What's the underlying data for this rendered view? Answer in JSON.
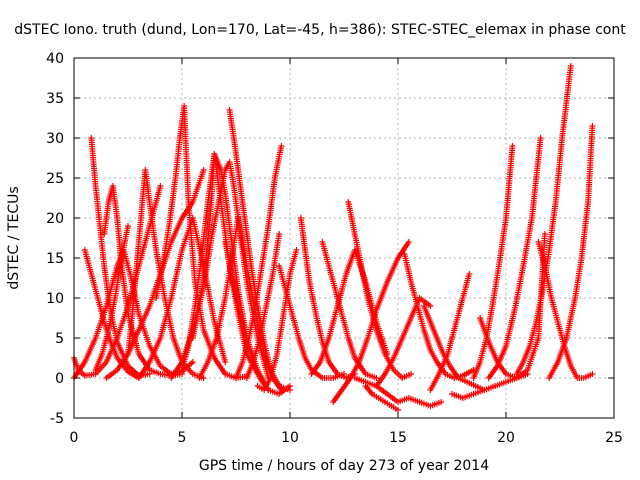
{
  "chart_data": {
    "type": "scatter",
    "title": "dSTEC Iono. truth (dund, Lon=170, Lat=-45, h=386): STEC-STEC_elemax in phase cont",
    "xlabel": "GPS time / hours of day 273 of year 2014",
    "ylabel": "dSTEC  / TECUs",
    "xlim": [
      0,
      25
    ],
    "ylim": [
      -5,
      40
    ],
    "xticks": [
      0,
      5,
      10,
      15,
      20,
      25
    ],
    "yticks": [
      -5,
      0,
      5,
      10,
      15,
      20,
      25,
      30,
      35,
      40
    ],
    "grid": true,
    "marker": "+",
    "color": "#ff0000",
    "arcs": [
      {
        "x": [
          0.0,
          0.2,
          0.5,
          1.0,
          1.5,
          2.0,
          2.5,
          3.0,
          3.5,
          4.0
        ],
        "y": [
          2.5,
          1.0,
          0.3,
          0.5,
          2.0,
          5.0,
          9.0,
          14.0,
          19.0,
          24.0
        ]
      },
      {
        "x": [
          0.0,
          0.5,
          1.0,
          1.5,
          2.0,
          2.3,
          2.6,
          3.0,
          3.5,
          4.0,
          4.5,
          5.0,
          5.5
        ],
        "y": [
          0.0,
          2.0,
          5.0,
          9.0,
          14.0,
          16.0,
          13.0,
          8.0,
          4.0,
          1.5,
          0.5,
          0.8,
          2.0
        ]
      },
      {
        "x": [
          0.8,
          1.0,
          1.2,
          1.4,
          1.6,
          1.8,
          2.0,
          2.5,
          3.0,
          3.5
        ],
        "y": [
          30.0,
          24.0,
          19.0,
          14.0,
          10.0,
          7.0,
          4.5,
          1.5,
          0.3,
          0.5
        ]
      },
      {
        "x": [
          0.5,
          0.8,
          1.1,
          1.4,
          1.7,
          2.0,
          2.5,
          3.0
        ],
        "y": [
          16.0,
          13.0,
          10.0,
          7.0,
          4.5,
          2.5,
          0.8,
          0.0
        ]
      },
      {
        "x": [
          1.0,
          1.3,
          1.6,
          1.9,
          2.2,
          2.5
        ],
        "y": [
          1.0,
          3.0,
          6.0,
          10.0,
          15.0,
          19.0
        ]
      },
      {
        "x": [
          1.4,
          1.6,
          1.8,
          2.0,
          2.2,
          2.5,
          3.0,
          3.5,
          4.0,
          4.5,
          5.0
        ],
        "y": [
          18.0,
          22.0,
          24.0,
          20.0,
          14.0,
          8.0,
          3.0,
          1.0,
          0.5,
          0.3,
          0.5
        ]
      },
      {
        "x": [
          1.5,
          2.0,
          2.5,
          3.0,
          3.5,
          4.0,
          4.5,
          5.0,
          5.5,
          6.0
        ],
        "y": [
          0.0,
          1.0,
          3.0,
          6.0,
          9.0,
          13.0,
          17.0,
          20.0,
          22.0,
          26.0
        ]
      },
      {
        "x": [
          2.5,
          2.7,
          2.9,
          3.1,
          3.3,
          3.5,
          3.8,
          4.2,
          4.6,
          5.0,
          5.5,
          6.0
        ],
        "y": [
          3.0,
          8.0,
          14.0,
          20.0,
          26.0,
          22.0,
          16.0,
          10.0,
          5.0,
          2.0,
          0.5,
          0.0
        ]
      },
      {
        "x": [
          3.0,
          3.5,
          4.0,
          4.5,
          5.0,
          5.5,
          6.0,
          6.5,
          7.0
        ],
        "y": [
          0.0,
          2.0,
          5.0,
          10.0,
          16.0,
          20.0,
          14.0,
          7.0,
          2.0
        ]
      },
      {
        "x": [
          3.8,
          4.1,
          4.4,
          4.7,
          4.9,
          5.1,
          5.3,
          5.6,
          6.0,
          6.5,
          7.0,
          7.5,
          8.0
        ],
        "y": [
          10.0,
          14.0,
          19.0,
          25.0,
          30.0,
          34.0,
          22.0,
          12.0,
          6.0,
          2.5,
          0.5,
          0.0,
          0.2
        ]
      },
      {
        "x": [
          4.5,
          5.0,
          5.5,
          6.0,
          6.3,
          6.5,
          6.8,
          7.2,
          7.6,
          8.0,
          8.5
        ],
        "y": [
          0.0,
          2.0,
          6.0,
          12.0,
          20.0,
          28.0,
          22.0,
          14.0,
          8.0,
          3.0,
          0.5
        ]
      },
      {
        "x": [
          5.0,
          5.3,
          5.6,
          5.9,
          6.2,
          6.5,
          6.8,
          7.0,
          7.3,
          7.6,
          8.0,
          8.5,
          9.0
        ],
        "y": [
          1.0,
          4.0,
          9.0,
          15.0,
          22.0,
          28.0,
          26.0,
          23.0,
          17.0,
          11.0,
          5.0,
          1.0,
          -1.5
        ]
      },
      {
        "x": [
          5.5,
          5.8,
          6.1,
          6.4,
          6.7,
          7.0,
          7.2,
          7.4,
          7.7,
          8.0,
          8.5,
          9.0
        ],
        "y": [
          5.0,
          9.0,
          13.0,
          18.0,
          22.0,
          26.0,
          27.0,
          24.0,
          18.0,
          12.0,
          5.0,
          0.0
        ]
      },
      {
        "x": [
          5.8,
          6.2,
          6.6,
          7.0,
          7.3,
          7.6,
          8.0,
          8.4,
          8.8,
          9.2,
          9.6
        ],
        "y": [
          0.0,
          2.0,
          5.0,
          10.0,
          15.0,
          20.0,
          14.0,
          8.0,
          3.0,
          0.0,
          -1.5
        ]
      },
      {
        "x": [
          7.2,
          7.4,
          7.6,
          7.8,
          8.0,
          8.2,
          8.5,
          8.8,
          9.1,
          9.5,
          10.0
        ],
        "y": [
          33.5,
          30.0,
          26.0,
          22.0,
          18.0,
          14.0,
          9.0,
          4.5,
          1.0,
          -1.0,
          -1.5
        ]
      },
      {
        "x": [
          7.0,
          7.3,
          7.6,
          8.0,
          8.3,
          8.6,
          9.0,
          9.5,
          10.0
        ],
        "y": [
          17.0,
          13.0,
          9.0,
          5.0,
          2.0,
          0.0,
          -1.5,
          -2.0,
          -1.0
        ]
      },
      {
        "x": [
          7.5,
          7.8,
          8.1,
          8.4,
          8.7,
          9.0,
          9.3,
          9.6
        ],
        "y": [
          0.0,
          2.0,
          5.0,
          9.0,
          14.0,
          19.0,
          25.0,
          29.0
        ]
      },
      {
        "x": [
          8.0,
          8.3,
          8.6,
          8.9,
          9.2,
          9.5
        ],
        "y": [
          0.0,
          2.0,
          5.0,
          9.0,
          13.0,
          18.0
        ]
      },
      {
        "x": [
          8.5,
          8.8,
          9.1,
          9.4,
          9.7,
          10.0,
          10.3
        ],
        "y": [
          -1.0,
          -1.5,
          0.0,
          3.0,
          8.0,
          13.0,
          16.0
        ]
      },
      {
        "x": [
          9.5,
          9.8,
          10.1,
          10.4,
          10.7,
          11.0,
          11.5,
          12.0,
          12.5
        ],
        "y": [
          14.0,
          11.0,
          8.0,
          5.0,
          2.5,
          1.0,
          0.0,
          0.0,
          0.5
        ]
      },
      {
        "x": [
          10.5,
          10.7,
          10.9,
          11.2,
          11.5,
          11.8,
          12.2,
          12.6,
          13.0
        ],
        "y": [
          20.0,
          16.0,
          12.0,
          8.0,
          4.5,
          2.0,
          0.5,
          0.0,
          0.5
        ]
      },
      {
        "x": [
          11.0,
          11.4,
          11.8,
          12.2,
          12.6,
          13.0,
          13.5,
          14.0,
          14.5
        ],
        "y": [
          0.5,
          2.0,
          5.0,
          9.0,
          13.0,
          16.0,
          12.0,
          7.0,
          3.0
        ]
      },
      {
        "x": [
          11.5,
          11.8,
          12.1,
          12.4,
          12.7,
          13.0,
          13.5,
          14.0
        ],
        "y": [
          17.0,
          14.0,
          11.0,
          8.0,
          5.0,
          2.5,
          0.5,
          0.0
        ]
      },
      {
        "x": [
          12.0,
          12.4,
          12.8,
          13.2,
          13.6,
          14.0,
          14.5,
          15.0,
          15.5
        ],
        "y": [
          -3.0,
          -1.5,
          0.0,
          2.0,
          5.0,
          8.5,
          12.0,
          15.0,
          17.0
        ]
      },
      {
        "x": [
          12.7,
          13.0,
          13.3,
          13.6,
          14.0,
          14.4,
          14.8,
          15.2,
          15.6
        ],
        "y": [
          22.0,
          18.0,
          14.0,
          10.0,
          6.0,
          3.0,
          1.0,
          0.0,
          0.5
        ]
      },
      {
        "x": [
          13.0,
          13.5,
          14.0,
          14.5,
          15.0,
          15.5,
          16.0,
          16.5,
          17.0
        ],
        "y": [
          0.0,
          -0.5,
          -1.0,
          -2.0,
          -3.0,
          -2.5,
          -3.0,
          -3.5,
          -3.0
        ]
      },
      {
        "x": [
          13.5,
          13.8,
          14.1,
          14.4,
          14.7,
          15.0
        ],
        "y": [
          -1.0,
          -2.0,
          -2.5,
          -3.0,
          -3.5,
          -4.0
        ]
      },
      {
        "x": [
          14.0,
          14.4,
          14.8,
          15.2,
          15.6,
          16.0,
          16.5
        ],
        "y": [
          -1.0,
          0.5,
          2.5,
          5.0,
          7.5,
          10.0,
          9.0
        ]
      },
      {
        "x": [
          15.3,
          15.6,
          15.9,
          16.2,
          16.5,
          16.8,
          17.2,
          17.6,
          18.0,
          18.5
        ],
        "y": [
          15.5,
          12.0,
          9.0,
          6.0,
          3.5,
          2.0,
          0.5,
          0.0,
          0.3,
          1.0
        ]
      },
      {
        "x": [
          16.2,
          16.5,
          16.8,
          17.1,
          17.4,
          17.8,
          18.2,
          18.6,
          19.0
        ],
        "y": [
          9.0,
          7.0,
          5.0,
          3.0,
          1.5,
          0.0,
          -0.5,
          -1.0,
          -1.5
        ]
      },
      {
        "x": [
          16.5,
          16.9,
          17.3,
          17.7,
          18.0,
          18.3
        ],
        "y": [
          -1.5,
          0.5,
          3.0,
          7.0,
          10.0,
          13.0
        ]
      },
      {
        "x": [
          17.5,
          18.0,
          18.5,
          19.0,
          19.5,
          20.0,
          20.5,
          21.0
        ],
        "y": [
          -2.0,
          -2.5,
          -2.0,
          -1.5,
          -1.0,
          -0.5,
          0.0,
          0.5
        ]
      },
      {
        "x": [
          18.5,
          18.8,
          19.1,
          19.4,
          19.7,
          20.0,
          20.3
        ],
        "y": [
          0.0,
          2.0,
          5.0,
          9.5,
          14.5,
          20.0,
          29.0
        ]
      },
      {
        "x": [
          18.8,
          19.2,
          19.6,
          20.0,
          20.5,
          21.0,
          21.5,
          21.8
        ],
        "y": [
          7.5,
          4.5,
          2.0,
          0.5,
          0.0,
          1.0,
          5.0,
          18.0
        ]
      },
      {
        "x": [
          19.2,
          19.6,
          20.0,
          20.4,
          20.8,
          21.2,
          21.6
        ],
        "y": [
          0.0,
          1.5,
          4.0,
          8.5,
          14.0,
          20.0,
          30.0
        ]
      },
      {
        "x": [
          20.5,
          20.8,
          21.1,
          21.4,
          21.7,
          22.0,
          22.3,
          22.6,
          23.0
        ],
        "y": [
          0.5,
          2.0,
          4.0,
          7.0,
          11.0,
          16.0,
          22.0,
          30.0,
          39.0
        ]
      },
      {
        "x": [
          21.5,
          21.8,
          22.1,
          22.4,
          22.7,
          23.0,
          23.3,
          23.6,
          24.0
        ],
        "y": [
          17.0,
          14.0,
          10.0,
          7.0,
          4.0,
          1.5,
          0.0,
          0.0,
          0.5
        ]
      },
      {
        "x": [
          22.0,
          22.4,
          22.8,
          23.2,
          23.5,
          23.8,
          24.0
        ],
        "y": [
          0.0,
          2.0,
          5.0,
          10.0,
          15.0,
          22.0,
          31.5
        ]
      }
    ]
  }
}
